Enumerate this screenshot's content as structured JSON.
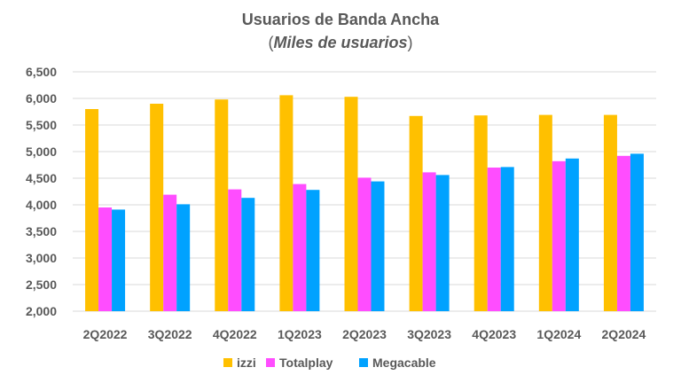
{
  "chart_data": {
    "type": "bar",
    "title": "Usuarios de Banda Ancha",
    "subtitle_open": "(",
    "subtitle_italic": "Miles de usuarios",
    "subtitle_close": ")",
    "categories": [
      "2Q2022",
      "3Q2022",
      "4Q2022",
      "1Q2023",
      "2Q2023",
      "3Q2023",
      "4Q2023",
      "1Q2024",
      "2Q2024"
    ],
    "series": [
      {
        "name": "izzi",
        "color": "#FFC000",
        "values": [
          5800,
          5900,
          5980,
          6060,
          6030,
          5670,
          5680,
          5690,
          5690
        ]
      },
      {
        "name": "Totalplay",
        "color": "#FF4DFF",
        "values": [
          3950,
          4190,
          4290,
          4390,
          4510,
          4610,
          4700,
          4820,
          4920
        ]
      },
      {
        "name": "Megacable",
        "color": "#00A2FF",
        "values": [
          3910,
          4010,
          4130,
          4280,
          4440,
          4560,
          4710,
          4870,
          4960
        ]
      }
    ],
    "ylim": [
      2000,
      6500
    ],
    "yticks": [
      "2,000",
      "2,500",
      "3,000",
      "3,500",
      "4,000",
      "4,500",
      "5,000",
      "5,500",
      "6,000",
      "6,500"
    ],
    "ytick_values": [
      2000,
      2500,
      3000,
      3500,
      4000,
      4500,
      5000,
      5500,
      6000,
      6500
    ],
    "grid": true,
    "legend_position": "bottom"
  }
}
